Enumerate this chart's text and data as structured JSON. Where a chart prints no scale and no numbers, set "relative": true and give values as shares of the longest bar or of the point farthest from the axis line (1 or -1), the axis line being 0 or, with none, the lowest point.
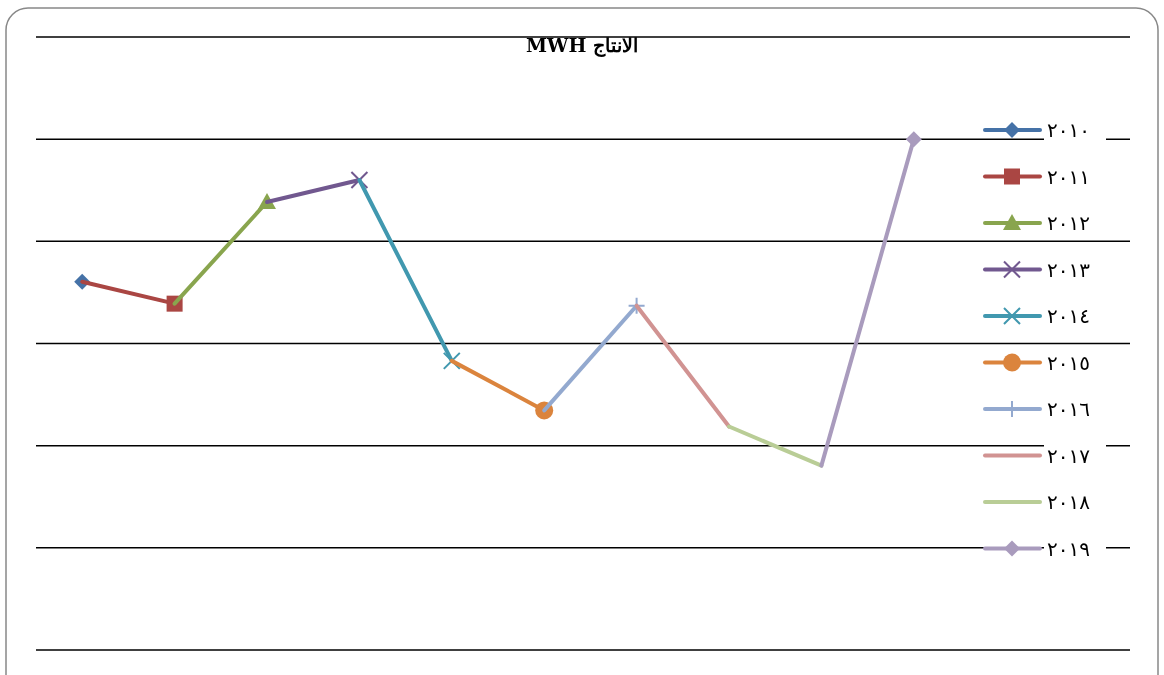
{
  "chart_data": {
    "type": "line",
    "title": "الانتاج MWH",
    "relative": true,
    "grid": "y",
    "legend": "right",
    "line_style": "solid",
    "categories": [
      null,
      null,
      null,
      null,
      null,
      null,
      null,
      null,
      null,
      null
    ],
    "series": [
      {
        "name": "٢٠١٠",
        "color": "#4572a7",
        "marker": "diamond",
        "values": [
          0.721,
          null,
          null,
          null,
          null,
          null,
          null,
          null,
          null,
          null
        ]
      },
      {
        "name": "٢٠١١",
        "color": "#aa4643",
        "marker": "square",
        "values": [
          0.721,
          0.678,
          null,
          null,
          null,
          null,
          null,
          null,
          null,
          null
        ]
      },
      {
        "name": "٢٠١٢",
        "color": "#89a54e",
        "marker": "triangle",
        "values": [
          null,
          0.678,
          0.877,
          null,
          null,
          null,
          null,
          null,
          null,
          null
        ]
      },
      {
        "name": "٢٠١٣",
        "color": "#71588f",
        "marker": "cross",
        "values": [
          null,
          null,
          0.877,
          0.92,
          null,
          null,
          null,
          null,
          null,
          null
        ]
      },
      {
        "name": "٢٠١٤",
        "color": "#4198af",
        "marker": "cross",
        "values": [
          null,
          null,
          null,
          0.92,
          0.566,
          null,
          null,
          null,
          null,
          null
        ]
      },
      {
        "name": "٢٠١٥",
        "color": "#db843d",
        "marker": "circle",
        "values": [
          null,
          null,
          null,
          null,
          0.566,
          0.469,
          null,
          null,
          null,
          null
        ]
      },
      {
        "name": "٢٠١٦",
        "color": "#93a9cf",
        "marker": "plus",
        "values": [
          null,
          null,
          null,
          null,
          null,
          0.469,
          0.674,
          null,
          null,
          null
        ]
      },
      {
        "name": "٢٠١٧",
        "color": "#d19392",
        "marker": "none",
        "values": [
          null,
          null,
          null,
          null,
          null,
          null,
          0.674,
          0.4375,
          null,
          null
        ]
      },
      {
        "name": "٢٠١٨",
        "color": "#b9cd96",
        "marker": "none",
        "values": [
          null,
          null,
          null,
          null,
          null,
          null,
          null,
          0.4375,
          0.361,
          null
        ]
      },
      {
        "name": "٢٠١٩",
        "color": "#a99bbd",
        "marker": "diamond",
        "values": [
          null,
          null,
          null,
          null,
          null,
          null,
          null,
          null,
          0.361,
          1
        ]
      }
    ]
  }
}
